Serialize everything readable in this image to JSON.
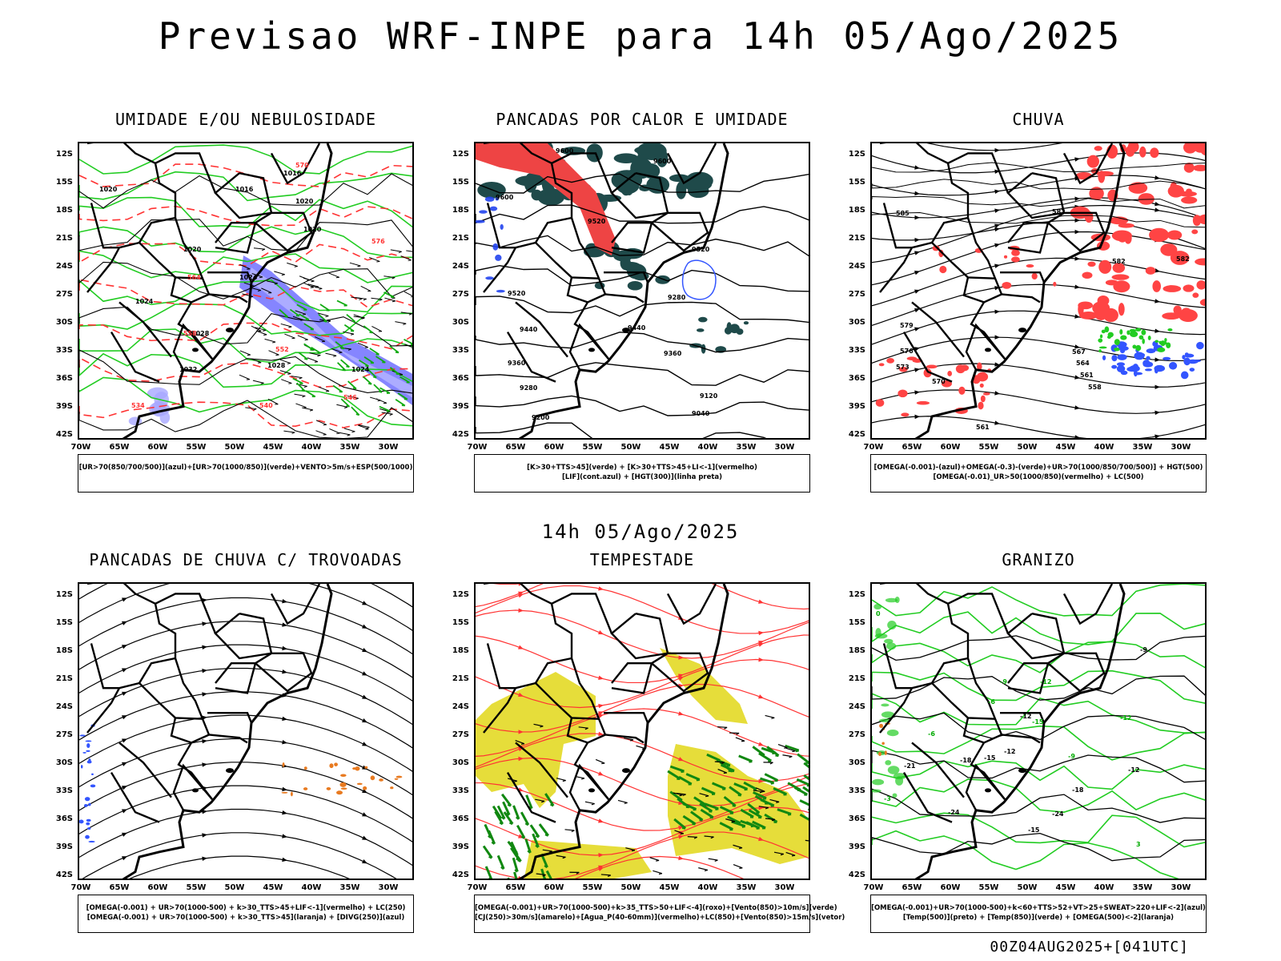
{
  "title": "Previsao WRF-INPE  para 14h 05/Ago/2025",
  "subtitle": "14h 05/Ago/2025",
  "footer": "00Z04AUG2025+[041UTC]",
  "axes": {
    "lat_labels": [
      "12S",
      "15S",
      "18S",
      "21S",
      "24S",
      "27S",
      "30S",
      "33S",
      "36S",
      "39S",
      "42S"
    ],
    "lon_labels": [
      "70W",
      "65W",
      "60W",
      "55W",
      "50W",
      "45W",
      "40W",
      "35W",
      "30W"
    ]
  },
  "panels": [
    {
      "id": "umidade",
      "title": "UMIDADE E/OU NEBULOSIDADE",
      "legend": [
        "[UR>70(850/700/500)](azul)+[UR>70(1000/850)](verde)+VENTO>5m/s+ESP(500/1000)"
      ],
      "labels": [
        "1016",
        "1016",
        "1020",
        "1020",
        "1020",
        "1020",
        "1024",
        "1024",
        "1028",
        "1032",
        "1028",
        "1024",
        "570",
        "564",
        "558",
        "552",
        "546",
        "540",
        "534",
        "576"
      ]
    },
    {
      "id": "pancadas_calor",
      "title": "PANCADAS POR CALOR E UMIDADE",
      "legend": [
        "[K>30+TTS>45](verde) + [K>30+TTS>45+LI<-1](vermelho)",
        "[LIF](cont.azul) + [HGT(300)](linha preta)"
      ],
      "labels": [
        "9600",
        "9600",
        "9600",
        "9520",
        "9520",
        "9520",
        "9440",
        "9440",
        "9360",
        "9360",
        "9280",
        "9280",
        "9200",
        "9120",
        "9040"
      ]
    },
    {
      "id": "chuva",
      "title": "CHUVA",
      "legend": [
        "[OMEGA(-0.001)-(azul)+OMEGA(-0.3)-(verde)+UR>70(1000/850/700/500)] + HGT(500)",
        "[OMEGA(-0.01)_UR>50(1000/850)(vermelho) + LC(500)"
      ],
      "labels": [
        "585",
        "582",
        "582",
        "579",
        "576",
        "573",
        "570",
        "567",
        "564",
        "561",
        "558",
        "561",
        "582"
      ]
    },
    {
      "id": "pancadas_trovoadas",
      "title": "PANCADAS DE CHUVA C/ TROVOADAS",
      "legend": [
        "[OMEGA(-0.001) + UR>70(1000-500) + k>30_TTS>45+LIF<-1](vermelho) + LC(250)",
        "[OMEGA(-0.001) + UR>70(1000-500) + k>30_TTS>45](laranja) + [DIVG(250)](azul)"
      ],
      "labels": []
    },
    {
      "id": "tempestade",
      "title": "TEMPESTADE",
      "legend": [
        "[OMEGA(-0.001)+UR>70(1000-500)+k>35_TTS>50+LIF<-4](roxo)+[Vento(850)>10m/s](verde)",
        "[CJ(250)>30m/s](amarelo)+[Agua_P(40-60mm)](vermelho)+LC(850)+[Vento(850)>15m/s](vetor)"
      ],
      "labels": []
    },
    {
      "id": "granizo",
      "title": "GRANIZO",
      "legend": [
        "[OMEGA(-0.001)+UR>70(1000-500)+k<60+TTS>52+VT>25+SWEAT>220+LIF<-2](azul)",
        "[Temp(500)](preto) + [Temp(850)](verde) + [OMEGA(500)<-2](laranja)"
      ],
      "labels": [
        "-9",
        "-12",
        "-12",
        "-15",
        "-18",
        "-18",
        "-21",
        "-24",
        "-24",
        "-15",
        "-12",
        "-9",
        "-15",
        "-12",
        "-12",
        "-9",
        "-6",
        "-6",
        "-3",
        "3",
        "0"
      ]
    }
  ]
}
